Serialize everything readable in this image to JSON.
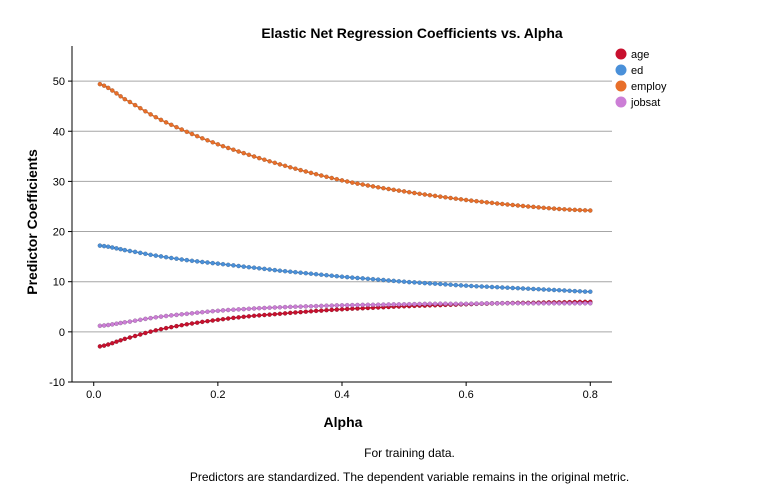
{
  "chart_data": {
    "type": "line",
    "title": "Elastic Net Regression Coefficients vs. Alpha",
    "xlabel": "Alpha",
    "ylabel": "Predictor Coefficients",
    "xlim": [
      -0.035,
      0.835
    ],
    "ylim": [
      -10,
      57
    ],
    "xticks": [
      0.0,
      0.2,
      0.4,
      0.6,
      0.8
    ],
    "xtick_labels": [
      "0.0",
      "0.2",
      "0.4",
      "0.6",
      "0.8"
    ],
    "yticks": [
      -10,
      0,
      10,
      20,
      30,
      40,
      50
    ],
    "ytick_labels": [
      "-10",
      "0",
      "10",
      "20",
      "30",
      "40",
      "50"
    ],
    "grid": "horizontal",
    "legend_position": "top-right",
    "x": [
      0.01,
      0.05,
      0.1,
      0.15,
      0.2,
      0.25,
      0.3,
      0.35,
      0.4,
      0.45,
      0.5,
      0.55,
      0.6,
      0.65,
      0.7,
      0.75,
      0.8
    ],
    "series": [
      {
        "name": "age",
        "color": "#c8102e",
        "values": [
          -2.9,
          -1.4,
          0.3,
          1.5,
          2.4,
          3.1,
          3.6,
          4.1,
          4.5,
          4.8,
          5.1,
          5.3,
          5.5,
          5.7,
          5.8,
          5.9,
          6.0
        ]
      },
      {
        "name": "ed",
        "color": "#4a90d9",
        "values": [
          17.2,
          16.3,
          15.2,
          14.3,
          13.6,
          12.9,
          12.2,
          11.6,
          11.0,
          10.5,
          10.0,
          9.6,
          9.2,
          8.9,
          8.6,
          8.3,
          8.0
        ]
      },
      {
        "name": "employ",
        "color": "#e86f2a",
        "values": [
          49.4,
          46.4,
          42.8,
          39.9,
          37.4,
          35.3,
          33.4,
          31.7,
          30.2,
          29.0,
          28.0,
          27.1,
          26.3,
          25.6,
          25.0,
          24.5,
          24.2
        ]
      },
      {
        "name": "jobsat",
        "color": "#cc7ed6",
        "values": [
          1.2,
          1.9,
          2.9,
          3.6,
          4.2,
          4.6,
          4.9,
          5.1,
          5.3,
          5.4,
          5.5,
          5.6,
          5.6,
          5.7,
          5.7,
          5.7,
          5.7
        ]
      }
    ]
  },
  "footnotes": {
    "line1": "For training data.",
    "line2": "Predictors are standardized. The dependent variable remains in the original metric."
  }
}
